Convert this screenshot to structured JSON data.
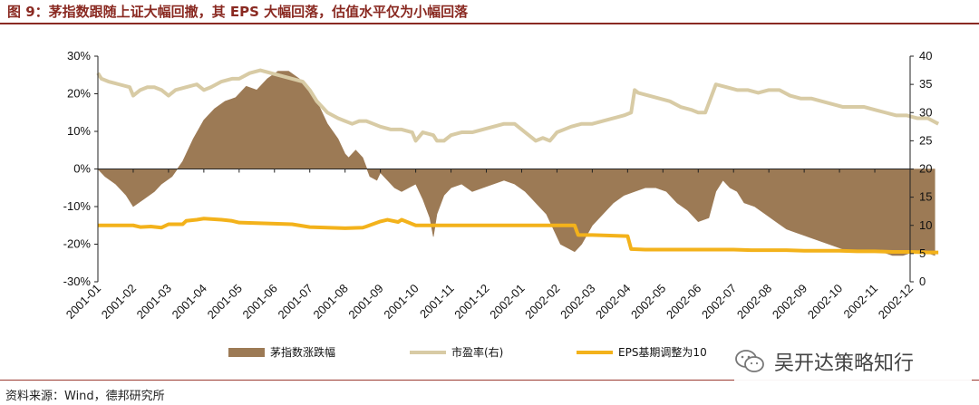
{
  "title": "图 9：茅指数跟随上证大幅回撤，其 EPS 大幅回落，估值水平仅为小幅回落",
  "source": "资料来源：Wind，德邦研究所",
  "watermark": "吴开达策略知行",
  "watermark_icon": "wechat-icon",
  "colors": {
    "title": "#8a2a22",
    "area": "#9c7a55",
    "pe": "#d8cba5",
    "eps": "#f3b21b",
    "axis": "#222222"
  },
  "chart_data": {
    "type": "area",
    "x_ticks": [
      "2001-01",
      "2001-02",
      "2001-03",
      "2001-04",
      "2001-05",
      "2001-06",
      "2001-07",
      "2001-08",
      "2001-09",
      "2001-10",
      "2001-11",
      "2001-12",
      "2002-01",
      "2002-02",
      "2002-03",
      "2002-04",
      "2002-05",
      "2002-06",
      "2002-07",
      "2002-08",
      "2002-09",
      "2002-10",
      "2002-11",
      "2002-12"
    ],
    "y_left": {
      "min": -30,
      "max": 30,
      "step": 10,
      "ticks": [
        "30%",
        "20%",
        "10%",
        "0%",
        "-10%",
        "-20%",
        "-30%"
      ]
    },
    "y_right": {
      "min": 0,
      "max": 40,
      "step": 5,
      "ticks": [
        "40",
        "35",
        "30",
        "25",
        "20",
        "15",
        "10",
        "5",
        "0"
      ]
    },
    "grid": false,
    "legend_position": "bottom",
    "series": [
      {
        "name": "茅指数涨跌幅",
        "type": "area",
        "axis": "left",
        "x": [
          0,
          0.2,
          0.5,
          0.8,
          1.0,
          1.3,
          1.6,
          1.8,
          2.1,
          2.4,
          2.7,
          3.0,
          3.3,
          3.6,
          3.9,
          4.2,
          4.5,
          4.8,
          5.1,
          5.4,
          5.7,
          6.0,
          6.2,
          6.5,
          6.8,
          7.0,
          7.1,
          7.3,
          7.5,
          7.7,
          7.9,
          8.0,
          8.2,
          8.4,
          8.6,
          8.8,
          9.0,
          9.2,
          9.4,
          9.5,
          9.6,
          9.8,
          10.0,
          10.3,
          10.6,
          10.9,
          11.2,
          11.5,
          11.8,
          12.1,
          12.3,
          12.5,
          12.7,
          12.9,
          13.1,
          13.3,
          13.5,
          13.7,
          14.0,
          14.3,
          14.6,
          14.9,
          15.2,
          15.5,
          15.8,
          16.1,
          16.4,
          16.7,
          17.0,
          17.3,
          17.5,
          17.7,
          17.9,
          18.1,
          18.3,
          18.6,
          18.9,
          19.2,
          19.5,
          19.8,
          20.1,
          20.4,
          20.7,
          21.0,
          21.3,
          21.6,
          21.9,
          22.2,
          22.5,
          22.8,
          23.1,
          23.4,
          23.7
        ],
        "y": [
          0,
          -2,
          -4,
          -7,
          -10,
          -8,
          -6,
          -4,
          -2,
          2,
          8,
          13,
          16,
          18,
          19,
          22,
          21,
          24,
          26,
          26,
          24,
          21,
          18,
          12,
          8,
          4,
          3,
          5,
          3,
          -2,
          -3,
          -1,
          -3,
          -5,
          -6,
          -5,
          -4,
          -8,
          -13,
          -18,
          -12,
          -7,
          -5,
          -4,
          -6,
          -5,
          -4,
          -3,
          -4,
          -6,
          -8,
          -10,
          -12,
          -16,
          -20,
          -21,
          -22,
          -20,
          -15,
          -12,
          -9,
          -7,
          -6,
          -5,
          -5,
          -6,
          -9,
          -11,
          -14,
          -13,
          -6,
          -3,
          -5,
          -6,
          -9,
          -10,
          -12,
          -14,
          -16,
          -17,
          -18,
          -19,
          -20,
          -21,
          -22,
          -22,
          -22,
          -22,
          -23,
          -23,
          -22,
          -22,
          -23
        ]
      },
      {
        "name": "市盈率(右)",
        "type": "line",
        "axis": "right",
        "x": [
          0,
          0.1,
          0.3,
          0.6,
          0.9,
          1.0,
          1.2,
          1.4,
          1.6,
          1.8,
          2.0,
          2.2,
          2.5,
          2.8,
          3.0,
          3.2,
          3.5,
          3.8,
          4.0,
          4.3,
          4.6,
          4.9,
          5.2,
          5.5,
          5.8,
          6.0,
          6.2,
          6.5,
          6.8,
          7.0,
          7.2,
          7.4,
          7.6,
          7.8,
          8.0,
          8.3,
          8.6,
          8.9,
          9.0,
          9.2,
          9.5,
          9.6,
          9.8,
          10.0,
          10.3,
          10.6,
          10.9,
          11.2,
          11.5,
          11.8,
          12.0,
          12.2,
          12.4,
          12.6,
          12.8,
          13.0,
          13.2,
          13.4,
          13.7,
          14.0,
          14.3,
          14.6,
          14.9,
          15.1,
          15.2,
          15.3,
          15.6,
          15.9,
          16.2,
          16.5,
          16.8,
          17.0,
          17.2,
          17.5,
          17.8,
          18.1,
          18.4,
          18.7,
          19.0,
          19.3,
          19.6,
          19.9,
          20.2,
          20.5,
          20.8,
          21.1,
          21.4,
          21.7,
          22.0,
          22.3,
          22.6,
          22.9,
          23.2,
          23.5,
          23.8
        ],
        "y": [
          37,
          36,
          35.5,
          35,
          34.5,
          33,
          34,
          34.5,
          34.5,
          34,
          33,
          34,
          34.5,
          35,
          34,
          34.5,
          35.5,
          36,
          36,
          37,
          37.5,
          37,
          36.5,
          36,
          35.5,
          34,
          32,
          30,
          29,
          28.5,
          28,
          28.5,
          28.5,
          28,
          27.5,
          27,
          27,
          26.5,
          25,
          26.5,
          26,
          25,
          25,
          26,
          26.5,
          26.5,
          27,
          27.5,
          28,
          28,
          27,
          26,
          25,
          25.5,
          25,
          26.5,
          27,
          27.5,
          28,
          28,
          28.5,
          29,
          29.5,
          30,
          34,
          33.5,
          33,
          32.5,
          32,
          31,
          30.5,
          30,
          30,
          35,
          34.5,
          34,
          34,
          33.5,
          34,
          34,
          33,
          32.5,
          32.5,
          32,
          31.5,
          31,
          31,
          31,
          30.5,
          30,
          29.5,
          29.5,
          29,
          29,
          28
        ]
      },
      {
        "name": "EPS基期调整为10",
        "type": "line",
        "axis": "right",
        "x": [
          0,
          1.0,
          1.2,
          1.5,
          1.8,
          2.0,
          2.4,
          2.5,
          2.8,
          3.0,
          3.5,
          3.8,
          4.0,
          4.5,
          5.0,
          5.5,
          6.0,
          6.5,
          7.0,
          7.5,
          7.6,
          8.0,
          8.2,
          8.5,
          8.6,
          9.0,
          9.5,
          10.0,
          10.5,
          11.0,
          11.5,
          12.0,
          12.5,
          13.0,
          13.5,
          13.6,
          14.0,
          14.5,
          15.0,
          15.1,
          15.5,
          16.0,
          16.5,
          17.0,
          17.5,
          18.0,
          18.5,
          19.0,
          19.5,
          20.0,
          20.5,
          21.0,
          21.5,
          22.0,
          22.5,
          23.0,
          23.5,
          23.8
        ],
        "y": [
          10,
          10,
          9.7,
          9.8,
          9.6,
          10.2,
          10.2,
          10.8,
          11,
          11.2,
          11,
          10.8,
          10.5,
          10.4,
          10.3,
          10.2,
          9.7,
          9.6,
          9.5,
          9.6,
          9.8,
          10.7,
          11,
          10.6,
          11,
          10,
          10,
          10,
          10,
          10,
          10,
          10,
          10,
          10,
          10,
          8.3,
          8.3,
          8.2,
          8.1,
          5.8,
          5.7,
          5.7,
          5.7,
          5.7,
          5.7,
          5.7,
          5.6,
          5.6,
          5.6,
          5.5,
          5.5,
          5.5,
          5.4,
          5.4,
          5.3,
          5.3,
          5.2,
          5.2
        ]
      }
    ]
  }
}
